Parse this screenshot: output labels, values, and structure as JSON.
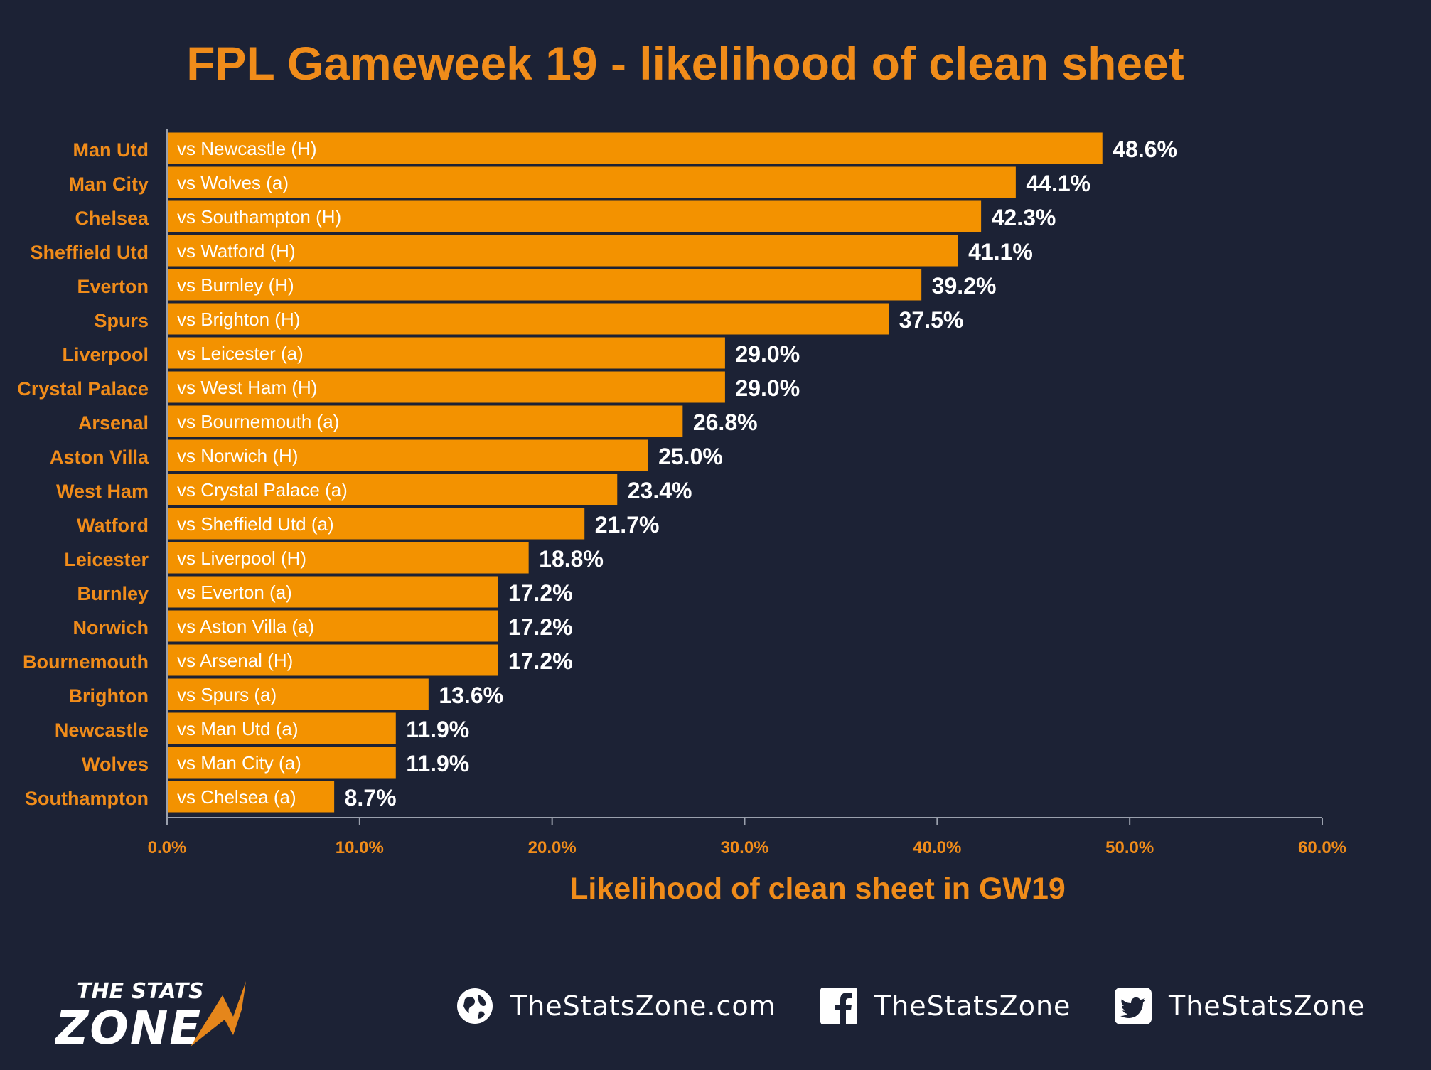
{
  "chart_data": {
    "type": "bar",
    "orientation": "horizontal",
    "title": "FPL Gameweek 19 - likelihood of clean sheet",
    "xlabel": "Likelihood of clean sheet in GW19",
    "ylabel": "",
    "xlim": [
      0,
      60
    ],
    "x_ticks": [
      "0.0%",
      "10.0%",
      "20.0%",
      "30.0%",
      "40.0%",
      "50.0%",
      "60.0%"
    ],
    "grid": false,
    "categories": [
      "Man Utd",
      "Man City",
      "Chelsea",
      "Sheffield Utd",
      "Everton",
      "Spurs",
      "Liverpool",
      "Crystal Palace",
      "Arsenal",
      "Aston Villa",
      "West Ham",
      "Watford",
      "Leicester",
      "Burnley",
      "Norwich",
      "Bournemouth",
      "Brighton",
      "Newcastle",
      "Wolves",
      "Southampton"
    ],
    "bar_labels": [
      "vs Newcastle (H)",
      "vs Wolves (a)",
      "vs Southampton (H)",
      "vs Watford (H)",
      "vs Burnley (H)",
      "vs Brighton (H)",
      "vs Leicester (a)",
      "vs West Ham (H)",
      "vs Bournemouth (a)",
      "vs Norwich (H)",
      "vs Crystal Palace (a)",
      "vs Sheffield Utd (a)",
      "vs Liverpool (H)",
      "vs Everton (a)",
      "vs Aston Villa (a)",
      "vs Arsenal (H)",
      "vs Spurs (a)",
      "vs Man Utd (a)",
      "vs Man City (a)",
      "vs Chelsea (a)"
    ],
    "values": [
      48.6,
      44.1,
      42.3,
      41.1,
      39.2,
      37.5,
      29.0,
      29.0,
      26.8,
      25.0,
      23.4,
      21.7,
      18.8,
      17.2,
      17.2,
      17.2,
      13.6,
      11.9,
      11.9,
      8.7
    ],
    "value_labels": [
      "48.6%",
      "44.1%",
      "42.3%",
      "41.1%",
      "39.2%",
      "37.5%",
      "29.0%",
      "29.0%",
      "26.8%",
      "25.0%",
      "23.4%",
      "21.7%",
      "18.8%",
      "17.2%",
      "17.2%",
      "17.2%",
      "13.6%",
      "11.9%",
      "11.9%",
      "8.7%"
    ],
    "colors": {
      "background": "#1c2235",
      "bar": "#f39200",
      "accent_text": "#f08c1a",
      "value_text": "#ffffff",
      "axis": "#9aa0ad"
    }
  },
  "branding": {
    "logo_line1": "THE STATS",
    "logo_line2": "ZONE",
    "website": "TheStatsZone.com",
    "facebook": "TheStatsZone",
    "twitter": "TheStatsZone",
    "icons": [
      "globe-icon",
      "facebook-icon",
      "twitter-icon"
    ]
  }
}
